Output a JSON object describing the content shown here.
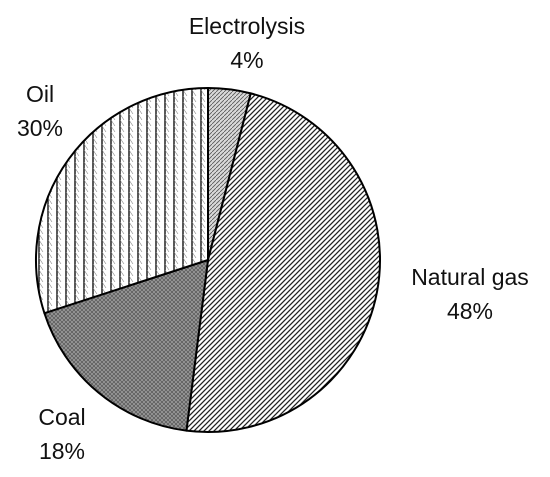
{
  "chart_data": {
    "type": "pie",
    "title": "",
    "slices": [
      {
        "label": "Electrolysis",
        "value": 4,
        "value_label": "4%",
        "pattern": "dots"
      },
      {
        "label": "Natural gas",
        "value": 48,
        "value_label": "48%",
        "pattern": "dense-diagonal"
      },
      {
        "label": "Coal",
        "value": 18,
        "value_label": "18%",
        "pattern": "grey-hatch"
      },
      {
        "label": "Oil",
        "value": 30,
        "value_label": "30%",
        "pattern": "vertical-stripes"
      }
    ],
    "start": "12 o'clock",
    "direction": "clockwise",
    "legend": "none",
    "colors": {
      "outline": "#000000",
      "ink": "#111111",
      "background": "#ffffff"
    }
  }
}
